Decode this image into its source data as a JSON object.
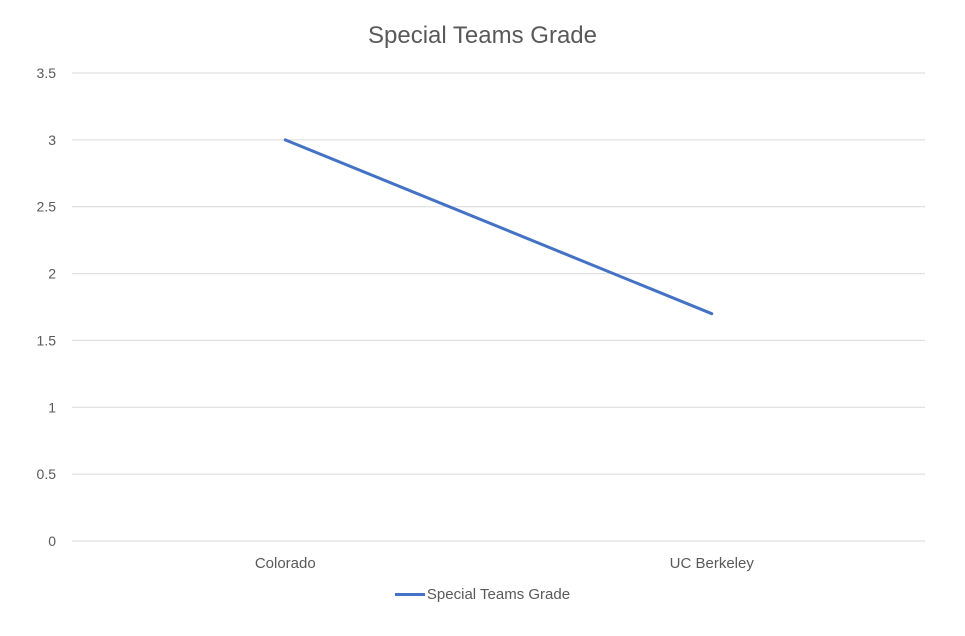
{
  "colors": {
    "series_line": "#4472c4",
    "gridline": "#d9d9d9",
    "text": "#595959"
  },
  "chart_data": {
    "type": "line",
    "title": "Special Teams Grade",
    "xlabel": "",
    "ylabel": "",
    "categories": [
      "Colorado",
      "UC Berkeley"
    ],
    "series": [
      {
        "name": "Special Teams Grade",
        "values": [
          3.0,
          1.7
        ]
      }
    ],
    "ylim": [
      0,
      3.5
    ],
    "yticks": [
      "0",
      "0.5",
      "1",
      "1.5",
      "2",
      "2.5",
      "3",
      "3.5"
    ],
    "grid": true,
    "legend_position": "bottom"
  }
}
